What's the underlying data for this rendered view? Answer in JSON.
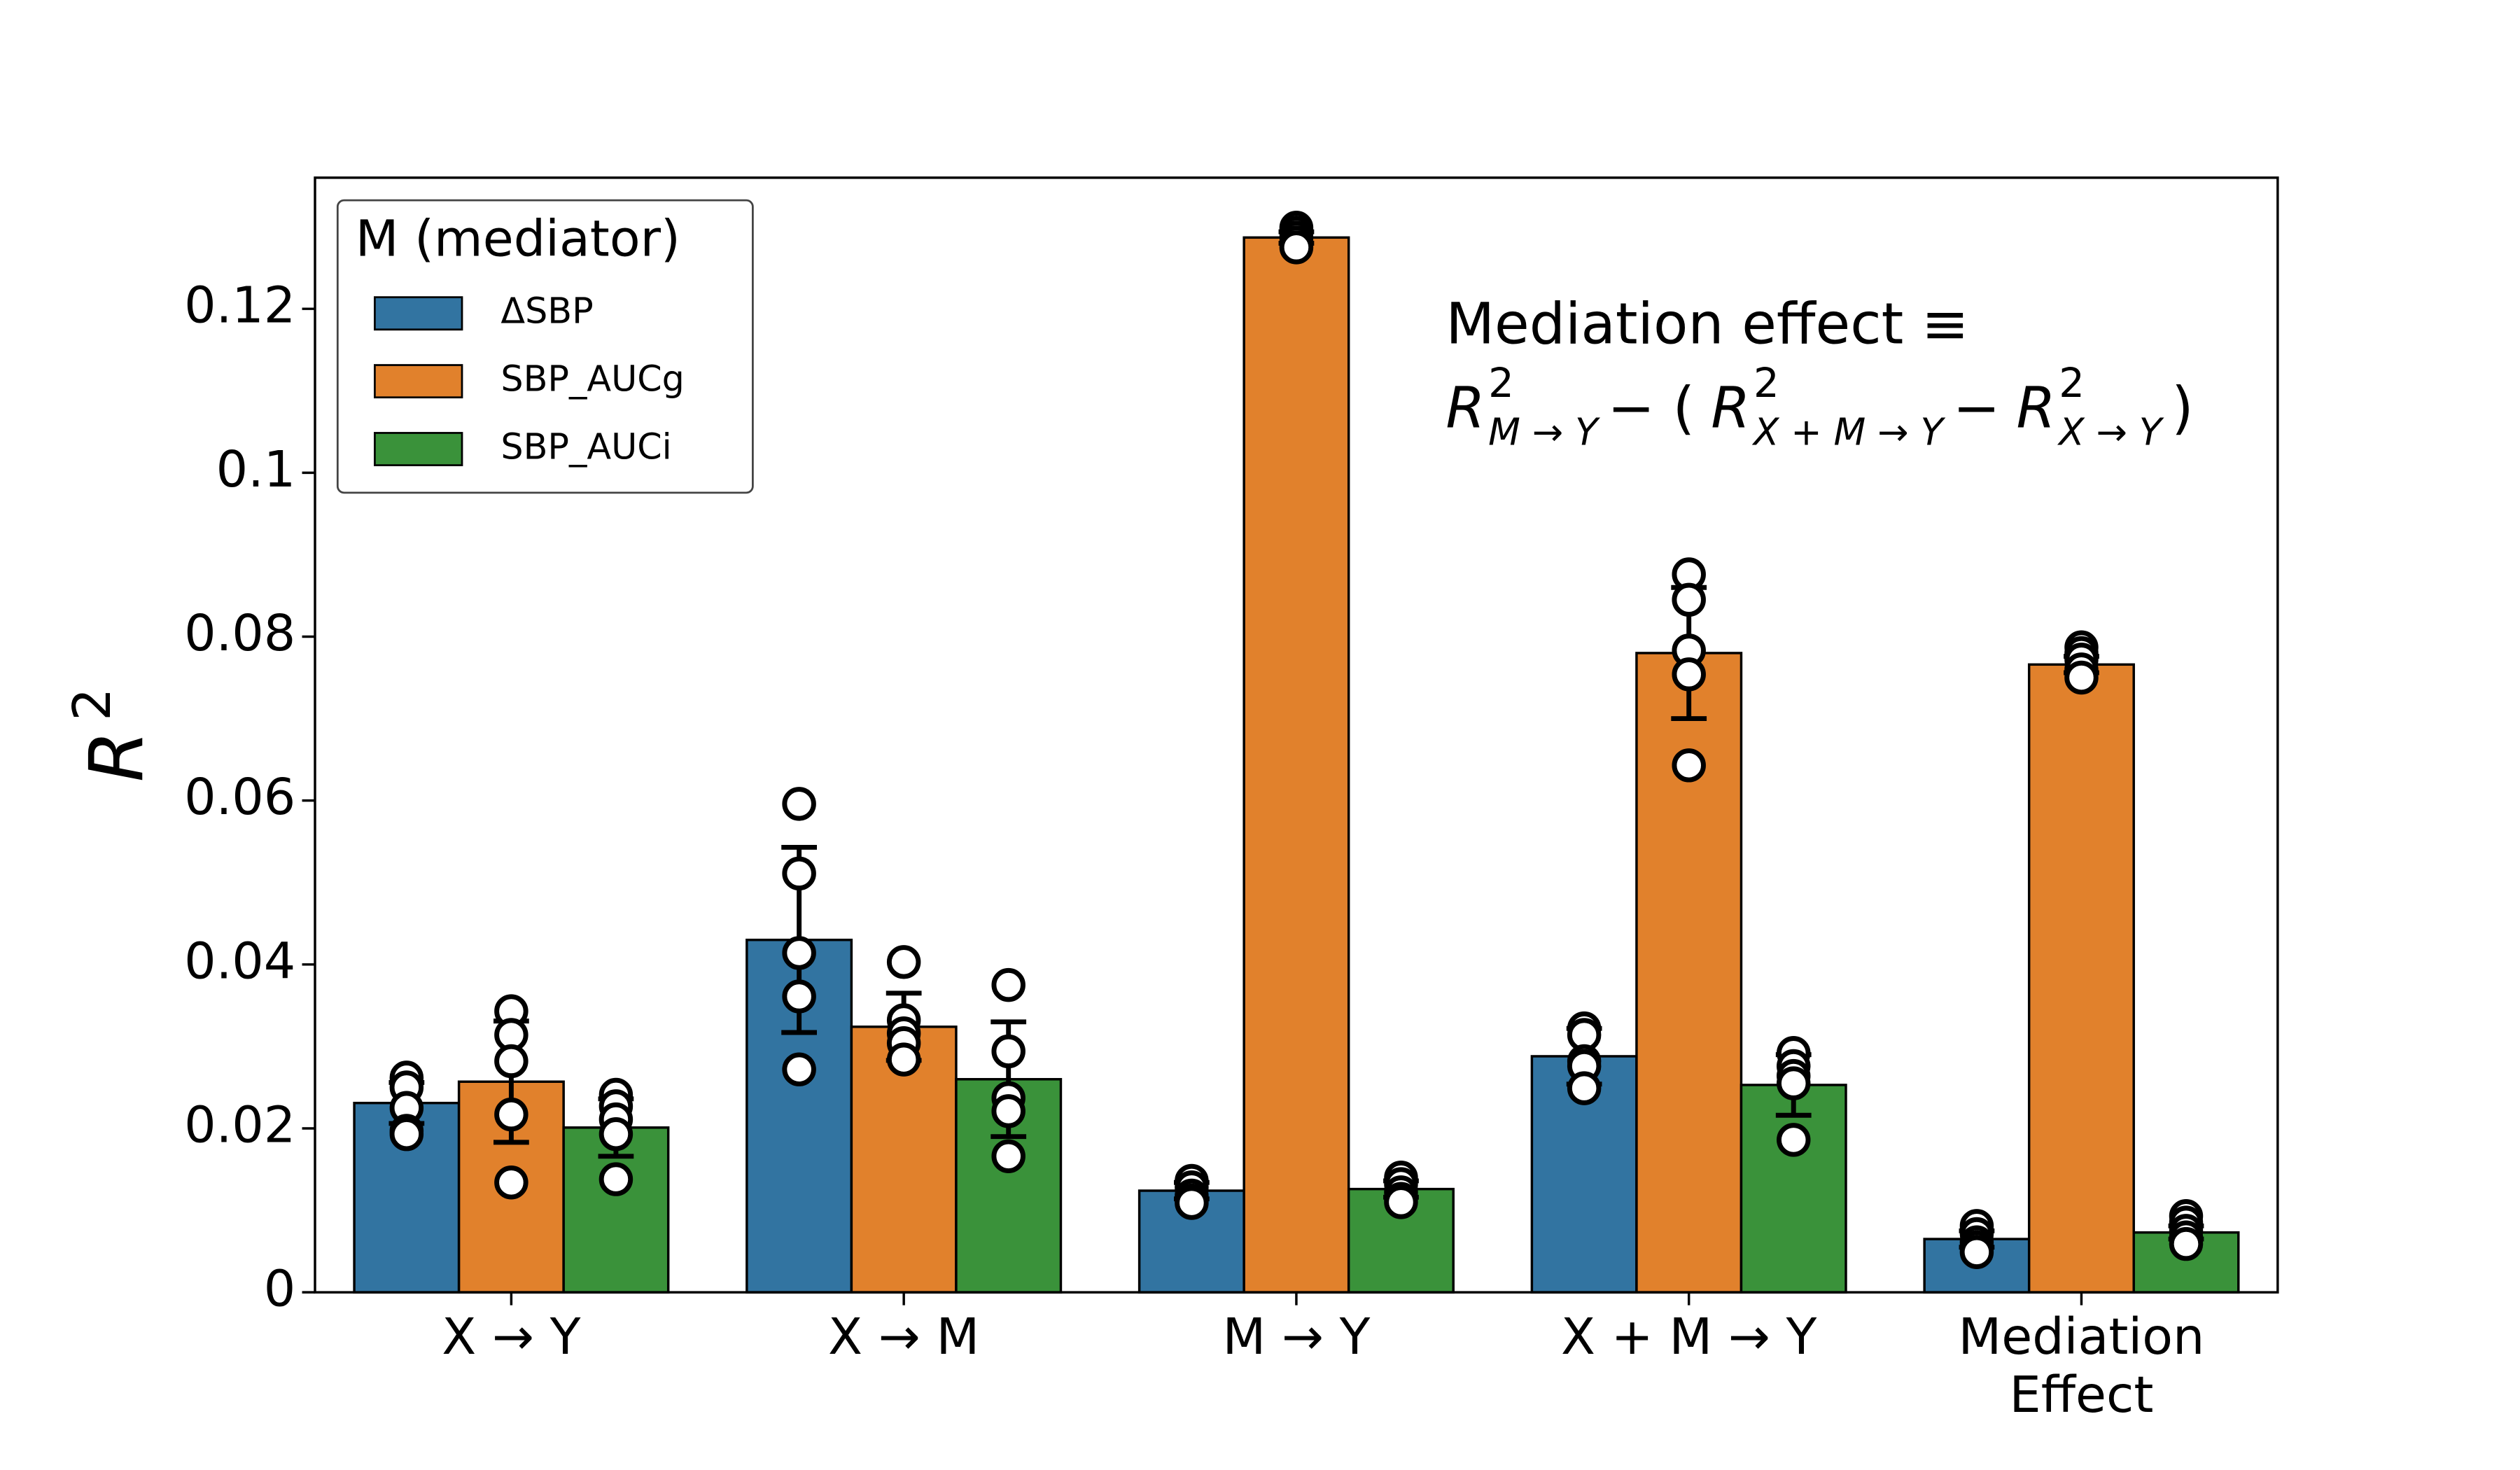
{
  "chart_data": {
    "type": "bar",
    "y_label": "R",
    "y_label_superscript": "2",
    "categories": [
      "X → Y",
      "X → M",
      "M → Y",
      "X + M  →  Y",
      "Mediation\nEffect"
    ],
    "ylim": [
      0,
      0.136
    ],
    "yticks": [
      0,
      0.02,
      0.04,
      0.06,
      0.08,
      0.1,
      0.12
    ],
    "legend_title": "M (mediator)",
    "legend_position": "upper left",
    "series": [
      {
        "name": "ΔSBP",
        "color": "#3274a1",
        "values": [
          0.0231,
          0.043,
          0.0124,
          0.0288,
          0.0065
        ],
        "errors": [
          0.0025,
          0.0113,
          0.001,
          0.0034,
          0.001
        ],
        "points": [
          [
            0.0262,
            0.025,
            0.0225,
            0.0197,
            0.0193
          ],
          [
            0.0596,
            0.0511,
            0.0414,
            0.0361,
            0.0272
          ],
          [
            0.0136,
            0.0128,
            0.0118,
            0.0112,
            0.0109
          ],
          [
            0.0322,
            0.0314,
            0.0282,
            0.0276,
            0.0249
          ],
          [
            0.0081,
            0.0071,
            0.0061,
            0.0055,
            0.0049
          ]
        ]
      },
      {
        "name": "SBP_AUCg",
        "color": "#e1812c",
        "values": [
          0.0257,
          0.0324,
          0.1287,
          0.078,
          0.0766
        ],
        "errors": [
          0.0074,
          0.0041,
          0.0007,
          0.008,
          0.001
        ],
        "points": [
          [
            0.0343,
            0.0314,
            0.0282,
            0.0217,
            0.0134
          ],
          [
            0.0403,
            0.0332,
            0.0316,
            0.0304,
            0.0284
          ],
          [
            0.1299,
            0.1293,
            0.1287,
            0.1281,
            0.1275
          ],
          [
            0.0876,
            0.0845,
            0.0783,
            0.0754,
            0.0643
          ],
          [
            0.0787,
            0.078,
            0.0772,
            0.076,
            0.075
          ]
        ]
      },
      {
        "name": "SBP_AUCi",
        "color": "#3a923a",
        "values": [
          0.0201,
          0.026,
          0.0126,
          0.0253,
          0.0073
        ],
        "errors": [
          0.0035,
          0.007,
          0.001,
          0.0037,
          0.0008
        ],
        "points": [
          [
            0.0241,
            0.0227,
            0.0211,
            0.0193,
            0.0138
          ],
          [
            0.0375,
            0.0294,
            0.0237,
            0.0221,
            0.0166
          ],
          [
            0.014,
            0.0132,
            0.0122,
            0.0114,
            0.011
          ],
          [
            0.0292,
            0.0276,
            0.0264,
            0.0255,
            0.0186
          ],
          [
            0.0093,
            0.0085,
            0.0075,
            0.0067,
            0.0059
          ]
        ]
      }
    ],
    "annotation": "Mediation effect ≡",
    "formula": [
      {
        "text": "R",
        "sup": "2",
        "sub": "M → Y"
      },
      {
        "text": "− ("
      },
      {
        "text": "R",
        "sup": "2",
        "sub": "X + M → Y"
      },
      {
        "text": "−"
      },
      {
        "text": "R",
        "sup": "2",
        "sub": "X → Y"
      },
      {
        "text": ")"
      }
    ]
  }
}
